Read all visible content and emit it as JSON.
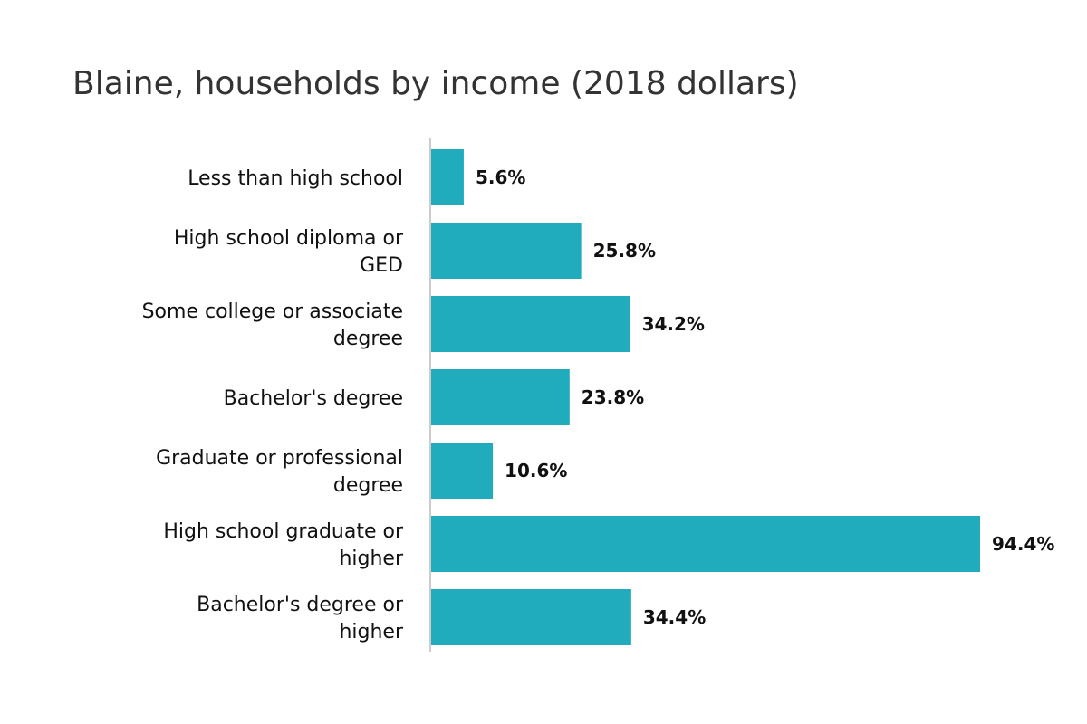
{
  "chart_data": {
    "type": "bar",
    "orientation": "horizontal",
    "title": "Blaine, households by income (2018 dollars)",
    "categories": [
      "Less than high school",
      "High school diploma or GED",
      "Some college or associate degree",
      "Bachelor's degree",
      "Graduate or professional degree",
      "High school graduate or higher",
      "Bachelor's degree or higher"
    ],
    "values": [
      5.6,
      25.8,
      34.2,
      23.8,
      10.6,
      94.4,
      34.4
    ],
    "value_labels": [
      "5.6%",
      "25.8%",
      "34.2%",
      "23.8%",
      "10.6%",
      "94.4%",
      "34.4%"
    ],
    "xlim": [
      0,
      100
    ],
    "grid": false,
    "legend": "none",
    "bar_color": "#20acbc",
    "axis_color": "#cccccc"
  }
}
